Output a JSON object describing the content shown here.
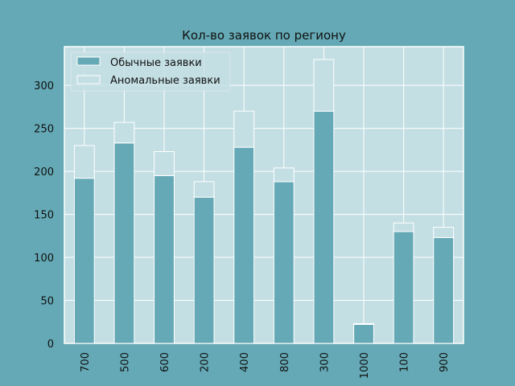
{
  "colors": {
    "figure_bg": "#64a9b5",
    "plot_bg": "#c4dfe4",
    "normal_bar": "#64a9b5",
    "anomaly_bar": "#c4dfe4",
    "grid": "#ffffff",
    "edge": "#ffffff"
  },
  "chart_data": {
    "type": "bar",
    "stacked": true,
    "title": "Кол-во заявок по региону",
    "xlabel": "",
    "ylabel": "",
    "categories": [
      "700",
      "500",
      "600",
      "200",
      "400",
      "800",
      "300",
      "1000",
      "100",
      "900"
    ],
    "series": [
      {
        "name": "Обычные заявки",
        "values": [
          192,
          233,
          195,
          170,
          228,
          188,
          270,
          22,
          130,
          123
        ]
      },
      {
        "name": "Аномальные заявки",
        "values": [
          38,
          24,
          28,
          18,
          42,
          16,
          60,
          1,
          10,
          12
        ]
      }
    ],
    "ylim": [
      0,
      345
    ],
    "yticks": [
      0,
      50,
      100,
      150,
      200,
      250,
      300
    ],
    "grid": true,
    "legend_position": "top-left"
  }
}
